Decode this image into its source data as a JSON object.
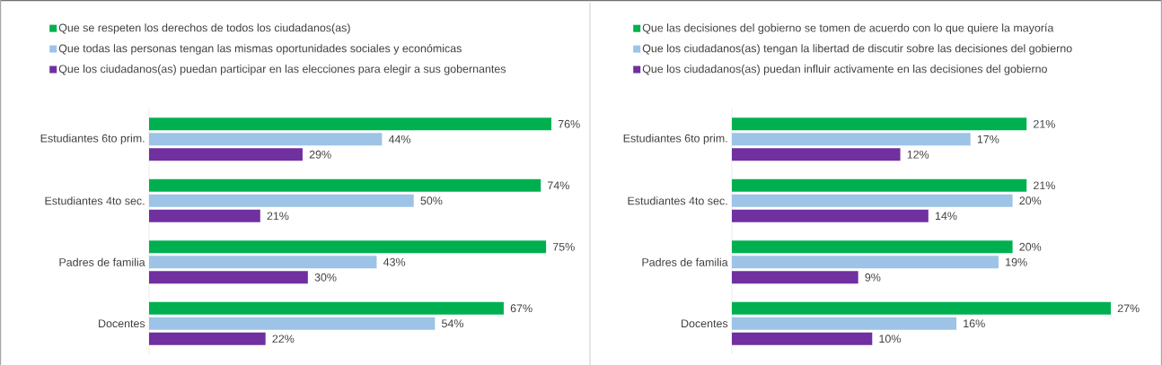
{
  "chart_data": [
    {
      "type": "bar",
      "orientation": "horizontal",
      "legend": "top left",
      "tick_labels": "y",
      "categories": [
        "Estudiantes 6to prim.",
        "Estudiantes 4to sec.",
        "Padres de familia",
        "Docentes"
      ],
      "series": [
        {
          "name": "Que se respeten los derechos de todos los ciudadanos(as)",
          "color": "#00b050",
          "values": [
            76,
            74,
            75,
            67
          ],
          "value_labels": [
            "76%",
            "74%",
            "75%",
            "67%"
          ]
        },
        {
          "name": "Que todas las personas tengan las mismas oportunidades sociales y económicas",
          "color": "#9dc3e6",
          "values": [
            44,
            50,
            43,
            54
          ],
          "value_labels": [
            "44%",
            "50%",
            "43%",
            "54%"
          ]
        },
        {
          "name": "Que los ciudadanos(as) puedan participar en las elecciones para elegir a sus gobernantes",
          "color": "#7030a0",
          "values": [
            29,
            21,
            30,
            22
          ],
          "value_labels": [
            "29%",
            "21%",
            "30%",
            "22%"
          ]
        }
      ]
    },
    {
      "type": "bar",
      "orientation": "horizontal",
      "legend": "top left",
      "tick_labels": "y",
      "categories": [
        "Estudiantes 6to prim.",
        "Estudiantes 4to sec.",
        "Padres de familia",
        "Docentes"
      ],
      "series": [
        {
          "name": "Que las decisiones del gobierno se tomen de acuerdo con lo que quiere la mayoría",
          "color": "#00b050",
          "values": [
            21,
            21,
            20,
            27
          ],
          "value_labels": [
            "21%",
            "21%",
            "20%",
            "27%"
          ]
        },
        {
          "name": "Que los ciudadanos(as) tengan la libertad de discutir sobre las decisiones del gobierno",
          "color": "#9dc3e6",
          "values": [
            17,
            20,
            19,
            16
          ],
          "value_labels": [
            "17%",
            "20%",
            "19%",
            "16%"
          ]
        },
        {
          "name": "Que los ciudadanos(as) puedan influir activamente en las decisiones del gobierno",
          "color": "#7030a0",
          "values": [
            12,
            14,
            9,
            10
          ],
          "value_labels": [
            "12%",
            "14%",
            "9%",
            "10%"
          ]
        }
      ]
    }
  ]
}
